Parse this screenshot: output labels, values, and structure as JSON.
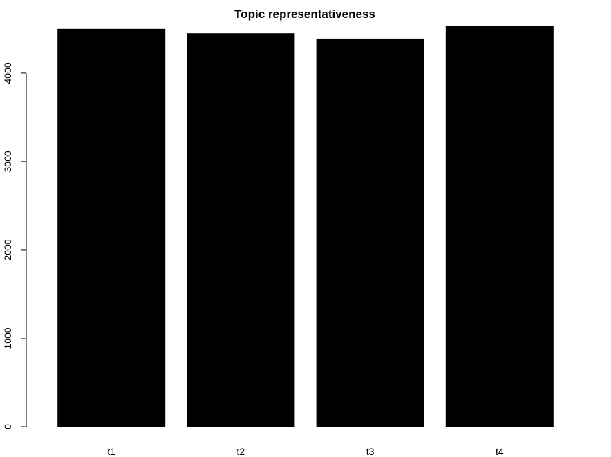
{
  "chart_data": {
    "type": "bar",
    "title": "Topic representativeness",
    "xlabel": "",
    "ylabel": "",
    "categories": [
      "t1",
      "t2",
      "t3",
      "t4"
    ],
    "values": [
      4500,
      4450,
      4390,
      4530
    ],
    "ylim": [
      0,
      4530
    ],
    "yticks": [
      0,
      1000,
      2000,
      3000,
      4000
    ],
    "bar_color": "#000000",
    "grid": false,
    "legend": "none"
  }
}
